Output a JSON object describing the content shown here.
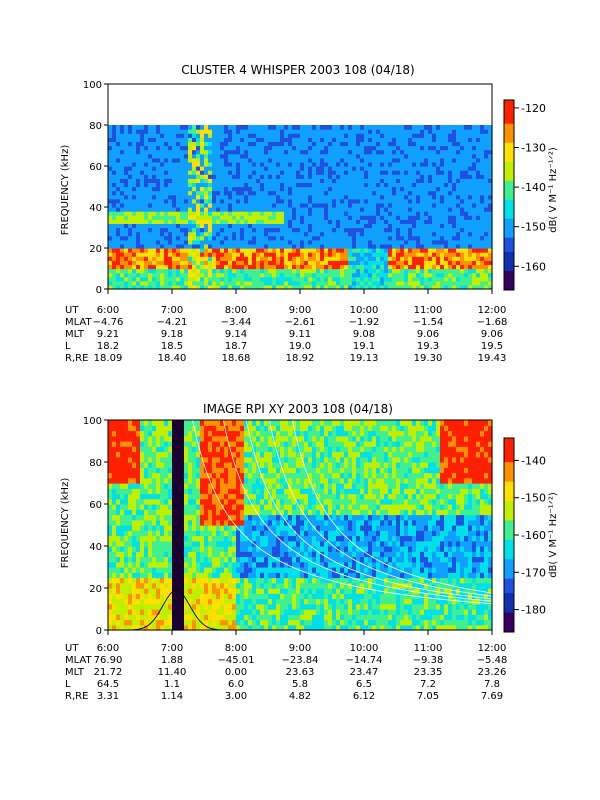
{
  "colors": {
    "scale": [
      "#1a0030",
      "#3a0060",
      "#1030b0",
      "#2050e0",
      "#10a0ff",
      "#00e0e8",
      "#40f090",
      "#c0f000",
      "#ffe000",
      "#ff9000",
      "#ff2000",
      "#ffffff"
    ],
    "axis": "#000000",
    "overlay_curve": "#ffffff"
  },
  "chart_data": [
    {
      "type": "heatmap",
      "title": "CLUSTER 4 WHISPER 2003 108 (04/18)",
      "ylabel": "FREQUENCY (kHz)",
      "ylim": [
        0,
        100
      ],
      "yticks": [
        "0",
        "20",
        "40",
        "60",
        "80",
        "100"
      ],
      "xlim": [
        "6:00",
        "12:00"
      ],
      "colorbar": {
        "label": "dB( V M⁻¹ Hz⁻¹ᐟ²)",
        "range": [
          -166,
          -118
        ],
        "ticks": [
          "-120",
          "-130",
          "-140",
          "-150",
          "-160"
        ]
      },
      "data_top_kHz": 80,
      "emission_bands": [
        {
          "name": "",
          "freq_kHz": [
            10,
            20
          ]
        },
        {
          "name": "",
          "freq_kHz": [
            32,
            38
          ]
        }
      ],
      "table": {
        "row_labels": [
          "UT",
          "MLAT",
          "MLT",
          "L",
          "R,RE"
        ],
        "columns": [
          [
            "6:00",
            "−4.76",
            "9.21",
            "18.2",
            "18.09"
          ],
          [
            "7:00",
            "−4.21",
            "9.18",
            "18.5",
            "18.40"
          ],
          [
            "8:00",
            "−3.44",
            "9.14",
            "18.7",
            "18.68"
          ],
          [
            "9:00",
            "−2.61",
            "9.11",
            "19.0",
            "18.92"
          ],
          [
            "10:00",
            "−1.92",
            "9.08",
            "19.1",
            "19.13"
          ],
          [
            "11:00",
            "−1.54",
            "9.06",
            "19.3",
            "19.30"
          ],
          [
            "12:00",
            "−1.68",
            "9.06",
            "19.5",
            "19.43"
          ]
        ]
      }
    },
    {
      "type": "heatmap",
      "title": "IMAGE RPI XY 2003 108 (04/18)",
      "ylabel": "FREQUENCY (kHz)",
      "ylim": [
        0,
        100
      ],
      "yticks": [
        "0",
        "20",
        "40",
        "60",
        "80",
        "100"
      ],
      "xlim": [
        "6:00",
        "12:00"
      ],
      "colorbar": {
        "label": "dB( V M⁻¹ Hz⁻¹ᐟ²)",
        "range": [
          -186,
          -134
        ],
        "ticks": [
          "-140",
          "-150",
          "-160",
          "-170",
          "-180"
        ]
      },
      "table": {
        "row_labels": [
          "UT",
          "MLAT",
          "MLT",
          "L",
          "R,RE"
        ],
        "columns": [
          [
            "6:00",
            "76.90",
            "21.72",
            "64.5",
            "3.31"
          ],
          [
            "7:00",
            "1.88",
            "11.40",
            "1.1",
            "1.14"
          ],
          [
            "8:00",
            "−45.01",
            "0.00",
            "6.0",
            "3.00"
          ],
          [
            "9:00",
            "−23.84",
            "23.63",
            "5.8",
            "4.82"
          ],
          [
            "10:00",
            "−14.74",
            "23.47",
            "6.5",
            "6.12"
          ],
          [
            "11:00",
            "−9.38",
            "23.35",
            "7.2",
            "7.05"
          ],
          [
            "12:00",
            "−5.48",
            "23.26",
            "7.8",
            "7.69"
          ]
        ]
      }
    }
  ]
}
